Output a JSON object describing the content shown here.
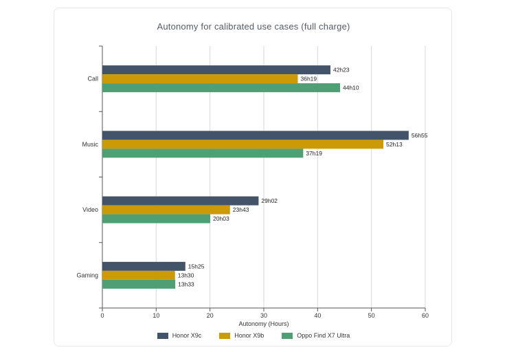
{
  "chart_data": {
    "type": "bar",
    "orientation": "horizontal",
    "title": "Autonomy for calibrated use cases (full charge)",
    "xlabel": "Autonomy (Hours)",
    "ylabel": "",
    "xlim": [
      0,
      60
    ],
    "xticks": [
      "0",
      "10",
      "20",
      "30",
      "40",
      "50",
      "60"
    ],
    "grid": "vertical",
    "legend_position": "bottom",
    "categories": [
      "Call",
      "Music",
      "Video",
      "Gaming"
    ],
    "series": [
      {
        "name": "Honor X9c",
        "color": "#435468",
        "values": [
          42.38,
          56.92,
          29.03,
          15.42
        ],
        "labels": [
          "42h23",
          "56h55",
          "29h02",
          "15h25"
        ]
      },
      {
        "name": "Honor X9b",
        "color": "#cc9a06",
        "values": [
          36.32,
          52.22,
          23.72,
          13.5
        ],
        "labels": [
          "36h19",
          "52h13",
          "23h43",
          "13h30"
        ]
      },
      {
        "name": "Oppo Find X7 Ultra",
        "color": "#4f9e74",
        "values": [
          44.17,
          37.32,
          20.05,
          13.55
        ],
        "labels": [
          "44h10",
          "37h19",
          "20h03",
          "13h33"
        ]
      }
    ]
  }
}
